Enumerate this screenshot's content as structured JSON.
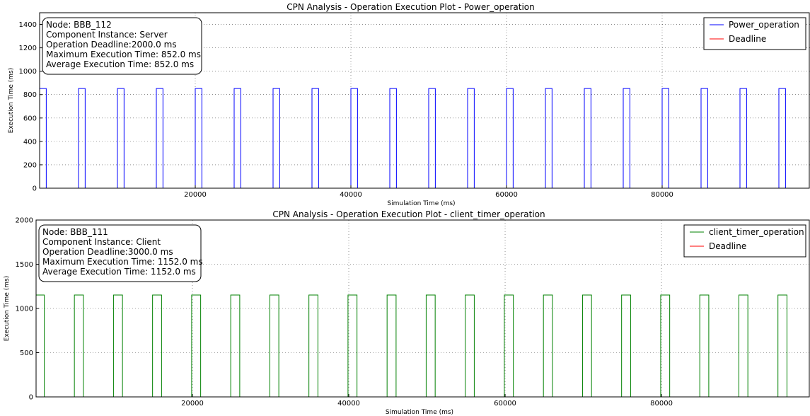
{
  "chart_data": [
    {
      "type": "line",
      "title": "CPN Analysis - Operation Execution Plot - Power_operation",
      "xlabel": "Simulation Time (ms)",
      "ylabel": "Execution Time (ms)",
      "xlim": [
        0,
        99000
      ],
      "ylim": [
        0,
        1500
      ],
      "xticks": [
        20000,
        40000,
        60000,
        80000
      ],
      "yticks": [
        0,
        200,
        400,
        600,
        800,
        1000,
        1200,
        1400
      ],
      "grid": true,
      "legend_position": "top-right",
      "info_box": [
        "Node: BBB_112",
        "Component Instance: Server",
        "Operation Deadline:2000.0 ms",
        "Maximum Execution Time: 852.0 ms",
        "Average Execution Time: 852.0 ms"
      ],
      "series": [
        {
          "name": "Power_operation",
          "color": "#0000ff",
          "pulse_value": 852,
          "pulse_duration": 852,
          "pulse_starts": [
            0,
            5000,
            10000,
            15000,
            20000,
            25000,
            30000,
            35000,
            40000,
            45000,
            50000,
            55000,
            60000,
            65000,
            70000,
            75000,
            80000,
            85000,
            90000,
            95000
          ]
        },
        {
          "name": "Deadline",
          "color": "#ff0000",
          "values": []
        }
      ]
    },
    {
      "type": "line",
      "title": "CPN Analysis - Operation Execution Plot - client_timer_operation",
      "xlabel": "Simulation Time (ms)",
      "ylabel": "Execution Time (ms)",
      "xlim": [
        0,
        99000
      ],
      "ylim": [
        0,
        2000
      ],
      "xticks": [
        20000,
        40000,
        60000,
        80000
      ],
      "yticks": [
        0,
        500,
        1000,
        1500,
        2000
      ],
      "grid": true,
      "legend_position": "top-right",
      "info_box": [
        "Node: BBB_111",
        "Component Instance: Client",
        "Operation Deadline:3000.0 ms",
        "Maximum Execution Time: 1152.0 ms",
        "Average Execution Time: 1152.0 ms"
      ],
      "series": [
        {
          "name": "client_timer_operation",
          "color": "#008000",
          "pulse_value": 1152,
          "pulse_duration": 1152,
          "pulse_starts": [
            -100,
            4900,
            9900,
            14900,
            19900,
            24900,
            29900,
            34900,
            39900,
            44900,
            49900,
            54900,
            59900,
            64900,
            69900,
            74900,
            79900,
            84900,
            89900,
            94900
          ]
        },
        {
          "name": "Deadline",
          "color": "#ff0000",
          "values": []
        }
      ]
    }
  ]
}
